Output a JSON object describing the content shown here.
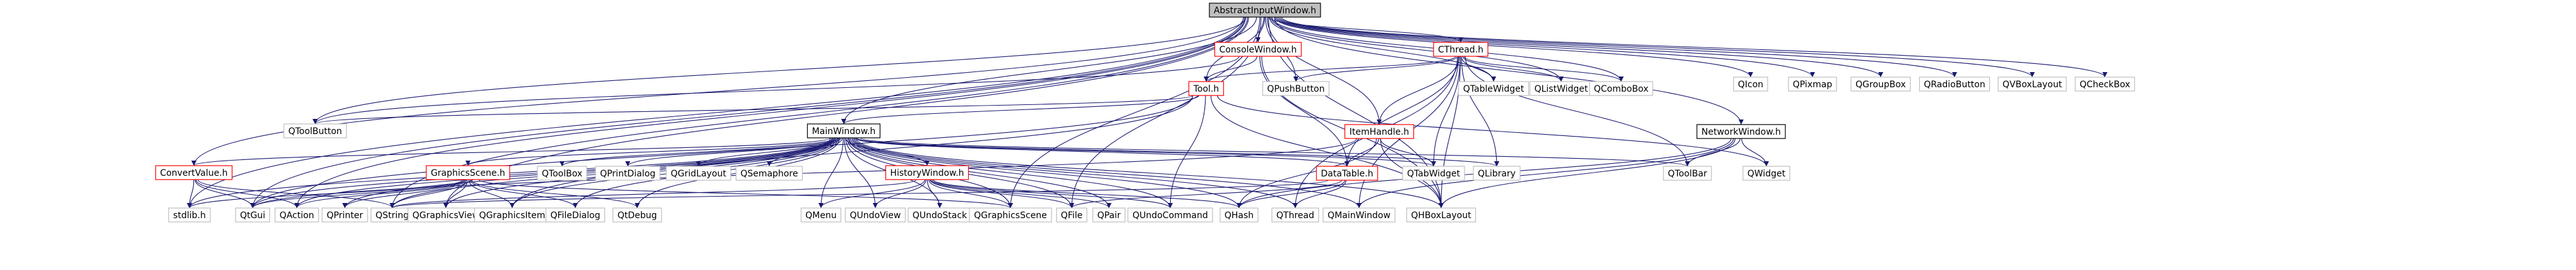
{
  "graph": {
    "edge_color": "#191970",
    "root_fill": "#bfbfbf",
    "nodes": [
      {
        "id": "abstract",
        "label": "AbstractInputWindow.h",
        "kind": "root"
      },
      {
        "id": "qicon",
        "label": "QIcon",
        "kind": "system"
      },
      {
        "id": "qpixmap",
        "label": "QPixmap",
        "kind": "system"
      },
      {
        "id": "qgroupbox",
        "label": "QGroupBox",
        "kind": "system"
      },
      {
        "id": "qradiobutton",
        "label": "QRadioButton",
        "kind": "system"
      },
      {
        "id": "qvboxlayout",
        "label": "QVBoxLayout",
        "kind": "system"
      },
      {
        "id": "qcheckbox",
        "label": "QCheckBox",
        "kind": "system"
      },
      {
        "id": "consolewindow",
        "label": "ConsoleWindow.h",
        "kind": "red"
      },
      {
        "id": "cthread",
        "label": "CThread.h",
        "kind": "red"
      },
      {
        "id": "tool",
        "label": "Tool.h",
        "kind": "red"
      },
      {
        "id": "qpushbutton",
        "label": "QPushButton",
        "kind": "system"
      },
      {
        "id": "qtablewidget",
        "label": "QTableWidget",
        "kind": "system"
      },
      {
        "id": "qlistwidget",
        "label": "QListWidget",
        "kind": "system"
      },
      {
        "id": "qcombobox",
        "label": "QComboBox",
        "kind": "system"
      },
      {
        "id": "qtoolbutton",
        "label": "QToolButton",
        "kind": "system"
      },
      {
        "id": "mainwindow",
        "label": "MainWindow.h",
        "kind": "header"
      },
      {
        "id": "itemhandle",
        "label": "ItemHandle.h",
        "kind": "red"
      },
      {
        "id": "networkwindow",
        "label": "NetworkWindow.h",
        "kind": "header"
      },
      {
        "id": "convertvalue",
        "label": "ConvertValue.h",
        "kind": "red"
      },
      {
        "id": "graphicsscene",
        "label": "GraphicsScene.h",
        "kind": "red"
      },
      {
        "id": "qtoolbox",
        "label": "QToolBox",
        "kind": "system"
      },
      {
        "id": "qprintdialog",
        "label": "QPrintDialog",
        "kind": "system"
      },
      {
        "id": "qgridlayout",
        "label": "QGridLayout",
        "kind": "system"
      },
      {
        "id": "qsemaphore",
        "label": "QSemaphore",
        "kind": "system"
      },
      {
        "id": "historywindow",
        "label": "HistoryWindow.h",
        "kind": "red"
      },
      {
        "id": "datatable",
        "label": "DataTable.h",
        "kind": "red"
      },
      {
        "id": "qtabwidget",
        "label": "QTabWidget",
        "kind": "system"
      },
      {
        "id": "qlibrary",
        "label": "QLibrary",
        "kind": "system"
      },
      {
        "id": "qtoolbar",
        "label": "QToolBar",
        "kind": "system"
      },
      {
        "id": "qwidget",
        "label": "QWidget",
        "kind": "system"
      },
      {
        "id": "stdlib",
        "label": "stdlib.h",
        "kind": "system"
      },
      {
        "id": "qgui",
        "label": "QtGui",
        "kind": "system"
      },
      {
        "id": "qaction",
        "label": "QAction",
        "kind": "system"
      },
      {
        "id": "qprinter",
        "label": "QPrinter",
        "kind": "system"
      },
      {
        "id": "qstring",
        "label": "QString",
        "kind": "system"
      },
      {
        "id": "qgraphicsview",
        "label": "QGraphicsView",
        "kind": "system"
      },
      {
        "id": "qgraphicsitem",
        "label": "QGraphicsItem",
        "kind": "system"
      },
      {
        "id": "qfiledialog",
        "label": "QFileDialog",
        "kind": "system"
      },
      {
        "id": "qtdebug",
        "label": "QtDebug",
        "kind": "system"
      },
      {
        "id": "qmenu",
        "label": "QMenu",
        "kind": "system"
      },
      {
        "id": "qundoview",
        "label": "QUndoView",
        "kind": "system"
      },
      {
        "id": "qundostack",
        "label": "QUndoStack",
        "kind": "system"
      },
      {
        "id": "qgraphicsscene",
        "label": "QGraphicsScene",
        "kind": "system"
      },
      {
        "id": "qfile",
        "label": "QFile",
        "kind": "system"
      },
      {
        "id": "qpair",
        "label": "QPair",
        "kind": "system"
      },
      {
        "id": "qundocommand",
        "label": "QUndoCommand",
        "kind": "system"
      },
      {
        "id": "qhash",
        "label": "QHash",
        "kind": "system"
      },
      {
        "id": "qthread",
        "label": "QThread",
        "kind": "system"
      },
      {
        "id": "qmainwindow",
        "label": "QMainWindow",
        "kind": "system"
      },
      {
        "id": "qhboxlayout",
        "label": "QHBoxLayout",
        "kind": "system"
      }
    ],
    "edges": [
      [
        "abstract",
        "qicon"
      ],
      [
        "abstract",
        "qpixmap"
      ],
      [
        "abstract",
        "qgroupbox"
      ],
      [
        "abstract",
        "qradiobutton"
      ],
      [
        "abstract",
        "qvboxlayout"
      ],
      [
        "abstract",
        "qcheckbox"
      ],
      [
        "abstract",
        "consolewindow"
      ],
      [
        "abstract",
        "cthread"
      ],
      [
        "abstract",
        "tool"
      ],
      [
        "abstract",
        "qpushbutton"
      ],
      [
        "abstract",
        "qtablewidget"
      ],
      [
        "abstract",
        "qlistwidget"
      ],
      [
        "abstract",
        "qcombobox"
      ],
      [
        "abstract",
        "mainwindow"
      ],
      [
        "abstract",
        "itemhandle"
      ],
      [
        "abstract",
        "networkwindow"
      ],
      [
        "abstract",
        "convertvalue"
      ],
      [
        "abstract",
        "stdlib"
      ],
      [
        "abstract",
        "qgui"
      ],
      [
        "abstract",
        "qaction"
      ],
      [
        "abstract",
        "qstring"
      ],
      [
        "abstract",
        "qgraphicsscene"
      ],
      [
        "abstract",
        "qfile"
      ],
      [
        "abstract",
        "qhboxlayout"
      ],
      [
        "abstract",
        "qtoolbutton"
      ],
      [
        "abstract",
        "qgraphicsview"
      ],
      [
        "consolewindow",
        "tool"
      ],
      [
        "consolewindow",
        "qtoolbutton"
      ],
      [
        "consolewindow",
        "datatable"
      ],
      [
        "consolewindow",
        "qhboxlayout"
      ],
      [
        "cthread",
        "tool"
      ],
      [
        "cthread",
        "qpushbutton"
      ],
      [
        "cthread",
        "qtablewidget"
      ],
      [
        "cthread",
        "qlistwidget"
      ],
      [
        "cthread",
        "qcombobox"
      ],
      [
        "cthread",
        "datatable"
      ],
      [
        "cthread",
        "qtabwidget"
      ],
      [
        "cthread",
        "qlibrary"
      ],
      [
        "cthread",
        "qtoolbar"
      ],
      [
        "cthread",
        "qthread"
      ],
      [
        "cthread",
        "qmainwindow"
      ],
      [
        "cthread",
        "qhboxlayout"
      ],
      [
        "cthread",
        "itemhandle"
      ],
      [
        "tool",
        "mainwindow"
      ],
      [
        "tool",
        "qtoolbutton"
      ],
      [
        "tool",
        "qwidget"
      ],
      [
        "tool",
        "qundocommand"
      ],
      [
        "tool",
        "qhboxlayout"
      ],
      [
        "tool",
        "qgui"
      ],
      [
        "tool",
        "qgraphicsitem"
      ],
      [
        "networkwindow",
        "qwidget"
      ],
      [
        "networkwindow",
        "qtoolbar"
      ],
      [
        "networkwindow",
        "qhash"
      ],
      [
        "networkwindow",
        "qmainwindow"
      ],
      [
        "networkwindow",
        "qhboxlayout"
      ],
      [
        "itemhandle",
        "datatable"
      ],
      [
        "itemhandle",
        "qtabwidget"
      ],
      [
        "itemhandle",
        "qhash"
      ],
      [
        "itemhandle",
        "qhboxlayout"
      ],
      [
        "itemhandle",
        "qgui"
      ],
      [
        "mainwindow",
        "convertvalue"
      ],
      [
        "mainwindow",
        "graphicsscene"
      ],
      [
        "mainwindow",
        "qtoolbox"
      ],
      [
        "mainwindow",
        "qprintdialog"
      ],
      [
        "mainwindow",
        "qgridlayout"
      ],
      [
        "mainwindow",
        "qsemaphore"
      ],
      [
        "mainwindow",
        "historywindow"
      ],
      [
        "mainwindow",
        "datatable"
      ],
      [
        "mainwindow",
        "qtabwidget"
      ],
      [
        "mainwindow",
        "qlibrary"
      ],
      [
        "mainwindow",
        "qtoolbar"
      ],
      [
        "mainwindow",
        "stdlib"
      ],
      [
        "mainwindow",
        "qgui"
      ],
      [
        "mainwindow",
        "qaction"
      ],
      [
        "mainwindow",
        "qprinter"
      ],
      [
        "mainwindow",
        "qstring"
      ],
      [
        "mainwindow",
        "qgraphicsview"
      ],
      [
        "mainwindow",
        "qgraphicsitem"
      ],
      [
        "mainwindow",
        "qfiledialog"
      ],
      [
        "mainwindow",
        "qtdebug"
      ],
      [
        "mainwindow",
        "qmenu"
      ],
      [
        "mainwindow",
        "qundoview"
      ],
      [
        "mainwindow",
        "qundostack"
      ],
      [
        "mainwindow",
        "qgraphicsscene"
      ],
      [
        "mainwindow",
        "qfile"
      ],
      [
        "mainwindow",
        "qpair"
      ],
      [
        "mainwindow",
        "qundocommand"
      ],
      [
        "mainwindow",
        "qhash"
      ],
      [
        "mainwindow",
        "qthread"
      ],
      [
        "mainwindow",
        "qmainwindow"
      ],
      [
        "mainwindow",
        "qhboxlayout"
      ],
      [
        "convertvalue",
        "stdlib"
      ],
      [
        "convertvalue",
        "qgui"
      ],
      [
        "convertvalue",
        "qstring"
      ],
      [
        "convertvalue",
        "qaction"
      ],
      [
        "graphicsscene",
        "qgui"
      ],
      [
        "graphicsscene",
        "qaction"
      ],
      [
        "graphicsscene",
        "qprinter"
      ],
      [
        "graphicsscene",
        "qstring"
      ],
      [
        "graphicsscene",
        "qgraphicsview"
      ],
      [
        "graphicsscene",
        "qgraphicsitem"
      ],
      [
        "graphicsscene",
        "qfiledialog"
      ],
      [
        "graphicsscene",
        "qtdebug"
      ],
      [
        "graphicsscene",
        "qgraphicsscene"
      ],
      [
        "graphicsscene",
        "stdlib"
      ],
      [
        "historywindow",
        "qmenu"
      ],
      [
        "historywindow",
        "qundoview"
      ],
      [
        "historywindow",
        "qundostack"
      ],
      [
        "historywindow",
        "qgraphicsscene"
      ],
      [
        "historywindow",
        "qfile"
      ],
      [
        "historywindow",
        "qpair"
      ],
      [
        "historywindow",
        "qundocommand"
      ],
      [
        "historywindow",
        "qhash"
      ],
      [
        "historywindow",
        "qstring"
      ],
      [
        "datatable",
        "qstring"
      ],
      [
        "datatable",
        "qhash"
      ],
      [
        "datatable",
        "qthread"
      ],
      [
        "datatable",
        "qfile"
      ]
    ]
  }
}
